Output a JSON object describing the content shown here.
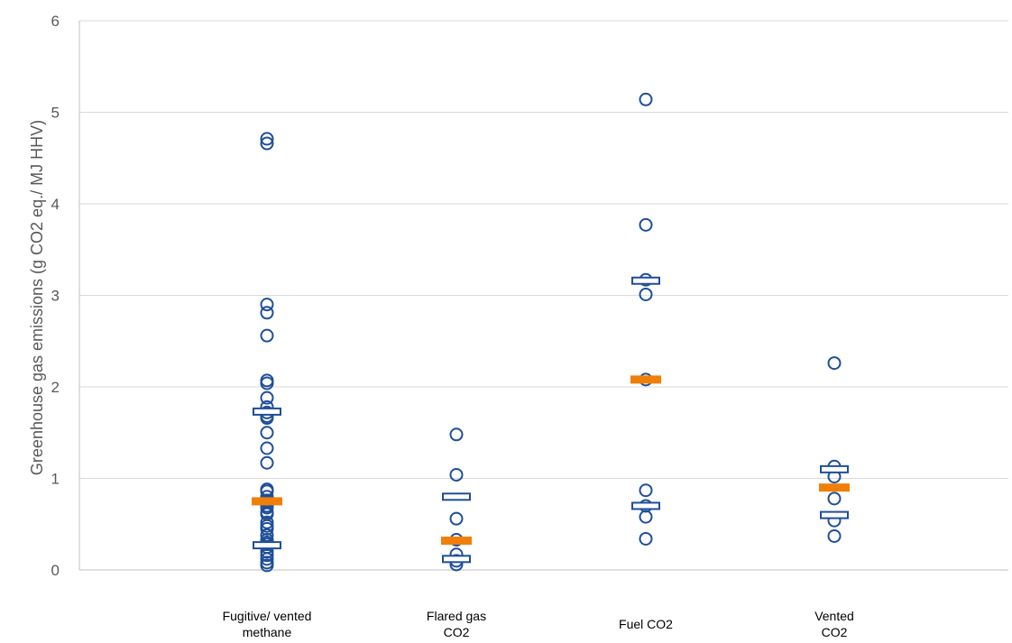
{
  "chart_data": {
    "type": "scatter",
    "title": "",
    "xlabel": "",
    "ylabel": "Greenhouse gas emissions (g CO2 eq./ MJ HHV)",
    "ylim": [
      0,
      6
    ],
    "yticks": [
      "0",
      "1",
      "2",
      "3",
      "4",
      "5",
      "6"
    ],
    "grid": "horizontal",
    "legend": "none",
    "categories": [
      {
        "line1": "Fugitive/ vented",
        "line2": "methane"
      },
      {
        "line1": "Flared gas",
        "line2": "CO2"
      },
      {
        "line1": "Fuel CO2",
        "line2": ""
      },
      {
        "line1": "Vented",
        "line2": "CO2"
      }
    ],
    "series": [
      {
        "category": "Fugitive/ vented methane",
        "points": [
          4.71,
          4.66,
          2.9,
          2.81,
          2.56,
          2.07,
          2.04,
          1.88,
          1.78,
          1.72,
          1.68,
          1.66,
          1.5,
          1.33,
          1.17,
          0.88,
          0.86,
          0.8,
          0.76,
          0.74,
          0.7,
          0.68,
          0.63,
          0.61,
          0.52,
          0.48,
          0.45,
          0.38,
          0.33,
          0.3,
          0.28,
          0.25,
          0.2,
          0.16,
          0.12,
          0.08,
          0.05
        ],
        "percentile_25": 0.27,
        "median": 0.75,
        "percentile_75": 1.73
      },
      {
        "category": "Flared gas CO2",
        "points": [
          1.48,
          1.04,
          0.56,
          0.33,
          0.17,
          0.1,
          0.06
        ],
        "percentile_25": 0.12,
        "median": 0.32,
        "percentile_75": 0.8
      },
      {
        "category": "Fuel CO2",
        "points": [
          5.14,
          3.77,
          3.17,
          3.01,
          2.08,
          0.87,
          0.7,
          0.58,
          0.34
        ],
        "percentile_25": 0.7,
        "median": 2.08,
        "percentile_75": 3.16
      },
      {
        "category": "Vented CO2",
        "points": [
          2.26,
          1.13,
          1.02,
          0.78,
          0.54,
          0.37
        ],
        "percentile_25": 0.6,
        "median": 0.9,
        "percentile_75": 1.1
      }
    ],
    "colors": {
      "points": "#1F4E99",
      "quartile_marker": "#1F4E99",
      "median_marker": "#F07F09",
      "grid": "#D9D9D9",
      "axis": "#BFBFBF"
    }
  }
}
